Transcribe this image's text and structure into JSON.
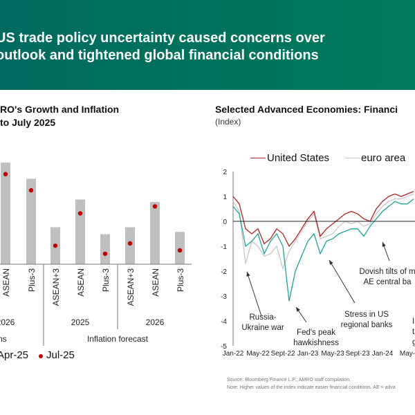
{
  "header": {
    "line1": "US trade policy uncertainty caused concerns over",
    "line2": "outlook and tightened global financial conditions"
  },
  "colors": {
    "header_start": "#006a5e",
    "header_end": "#007a5c",
    "bar": "#bfbfbf",
    "dot": "#c00000",
    "us": "#b22222",
    "euro": "#c8c8c8",
    "teal": "#1aa39a"
  },
  "chart_data": [
    {
      "type": "bar",
      "title": [
        "RO's Growth and Inflation",
        "to July 2025"
      ],
      "categories": [
        "ASEAN",
        "Plus-3",
        "ASEAN+3",
        "ASEAN",
        "Plus-3",
        "ASEAN+3",
        "ASEAN",
        "Plus-3"
      ],
      "groups": [
        {
          "label": "2026",
          "panel": "ns"
        },
        {
          "label": "2025",
          "panel": "Inflation forecast"
        },
        {
          "label": "2026",
          "panel": "Inflation forecast"
        }
      ],
      "panel_labels": [
        "ns",
        "Inflation forecast"
      ],
      "series": [
        {
          "name": "Apr-25",
          "kind": "bar",
          "values": [
            4.4,
            3.7,
            1.6,
            2.8,
            1.3,
            1.6,
            2.7,
            1.4
          ]
        },
        {
          "name": "Jul-25",
          "kind": "dot",
          "values": [
            3.9,
            3.2,
            0.8,
            2.2,
            0.45,
            0.9,
            2.5,
            0.6
          ]
        }
      ]
    },
    {
      "type": "line",
      "title": "Selected Advanced Economies: Financi",
      "subtitle": "(Index)",
      "ylim": [
        -5,
        2
      ],
      "yticks": [
        2,
        1,
        0,
        -1,
        -2,
        -3,
        -4,
        -5
      ],
      "xticks": [
        "Jan-22",
        "May-22",
        "Sept-22",
        "Jan-23",
        "May-23",
        "Sept-23",
        "Jan-24",
        "May-"
      ],
      "x": [
        "Jan-22",
        "Feb-22",
        "Mar-22",
        "Apr-22",
        "May-22",
        "Jun-22",
        "Jul-22",
        "Aug-22",
        "Sep-22",
        "Oct-22",
        "Nov-22",
        "Dec-22",
        "Jan-23",
        "Feb-23",
        "Mar-23",
        "Apr-23",
        "May-23",
        "Jun-23",
        "Jul-23",
        "Aug-23",
        "Sep-23",
        "Oct-23",
        "Nov-23",
        "Dec-23",
        "Jan-24",
        "Feb-24",
        "Mar-24",
        "Apr-24",
        "May-24",
        "Jun-24"
      ],
      "series": [
        {
          "name": "United States",
          "values": [
            1.0,
            0.7,
            -0.3,
            -0.5,
            -0.3,
            -0.9,
            -0.7,
            -0.3,
            -0.5,
            -1.0,
            -0.7,
            -0.3,
            0.1,
            0.4,
            -0.6,
            -0.3,
            -0.1,
            0.1,
            0.3,
            0.4,
            0.3,
            0.1,
            0.0,
            0.5,
            0.8,
            1.0,
            1.1,
            1.0,
            1.1,
            1.2
          ]
        },
        {
          "name": "euro area",
          "values": [
            0.8,
            0.4,
            -1.7,
            -0.8,
            -1.0,
            -1.4,
            -1.3,
            -1.0,
            -1.9,
            -1.2,
            -0.8,
            -0.4,
            0.0,
            0.3,
            -0.7,
            -0.6,
            -0.5,
            -0.2,
            0.0,
            -0.1,
            0.0,
            -0.2,
            -0.1,
            0.3,
            0.6,
            0.8,
            0.9,
            0.9,
            1.0,
            1.1
          ]
        },
        {
          "values": [
            0.6,
            0.3,
            -1.0,
            -0.8,
            -0.5,
            -1.3,
            -0.8,
            -0.5,
            -1.0,
            -3.2,
            -2.0,
            -1.4,
            -0.8,
            -0.5,
            -1.3,
            -0.8,
            -0.7,
            -0.5,
            -0.4,
            -0.3,
            -0.3,
            -0.6,
            -0.2,
            0.1,
            0.4,
            0.6,
            0.8,
            0.7,
            0.7,
            0.9
          ]
        }
      ],
      "legend_position": "top",
      "annotations": [
        {
          "l1": "Russia-",
          "l2": "Ukraine war"
        },
        {
          "l1": "Fed's peak",
          "l2": "hawkishness"
        },
        {
          "l1": "Stress in US",
          "l2": "regional banks"
        },
        {
          "l1": "Dovish tilts of m",
          "l2": "AE central ba"
        },
        {
          "l1": "I",
          "l2": "t",
          "l3": "g"
        }
      ],
      "source": "Source: Bloomberg Finance L.P.; AMRO staff compilation.",
      "note": "Note: Higher values of the index indicate easier financial conditions. AE = adva"
    }
  ]
}
